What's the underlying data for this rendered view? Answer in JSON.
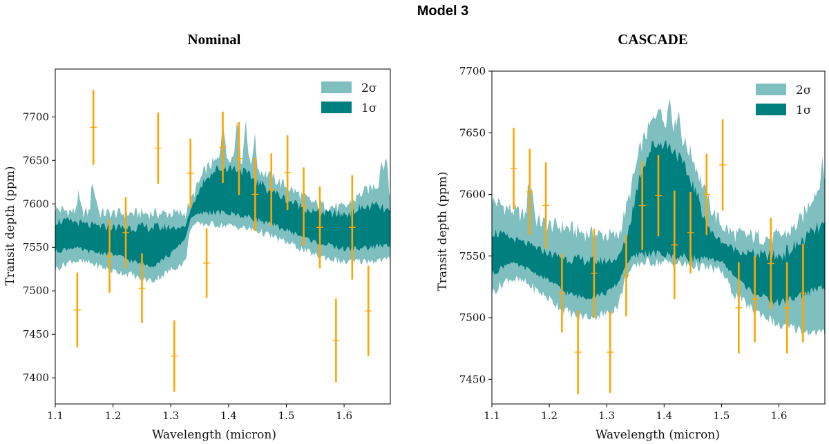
{
  "figure": {
    "title": "Model 3"
  },
  "chart_data": [
    {
      "type": "area",
      "title": "Nominal",
      "xlabel": "Wavelength (micron)",
      "ylabel": "Transit depth (ppm)",
      "xlim": [
        1.1,
        1.68
      ],
      "ylim": [
        7370,
        7755
      ],
      "xticks": [
        1.1,
        1.2,
        1.3,
        1.4,
        1.5,
        1.6
      ],
      "xtick_labels": [
        "1.1",
        "1.2",
        "1.3",
        "1.4",
        "1.5",
        "1.6"
      ],
      "yticks": [
        7400,
        7450,
        7500,
        7550,
        7600,
        7650,
        7700
      ],
      "ytick_labels": [
        "7400",
        "7450",
        "7500",
        "7550",
        "7600",
        "7650",
        "7700"
      ],
      "legend": {
        "position": "top-right",
        "entries": [
          {
            "label": "2σ",
            "color": "#7fbfbf"
          },
          {
            "label": "1σ",
            "color": "#007f7f"
          }
        ]
      },
      "bands": {
        "x": [
          1.1,
          1.13,
          1.16,
          1.2,
          1.23,
          1.25,
          1.27,
          1.3,
          1.325,
          1.335,
          1.36,
          1.38,
          1.4,
          1.42,
          1.45,
          1.5,
          1.55,
          1.6,
          1.63,
          1.655,
          1.68
        ],
        "two_sigma_lower": [
          7525,
          7535,
          7532,
          7523,
          7519,
          7513,
          7512,
          7524,
          7533,
          7575,
          7577,
          7576,
          7575,
          7573,
          7569,
          7556,
          7541,
          7533,
          7534,
          7535,
          7536
        ],
        "two_sigma_upper": [
          7594,
          7591,
          7590,
          7589,
          7589,
          7589,
          7589,
          7589,
          7589,
          7605,
          7640,
          7650,
          7655,
          7652,
          7640,
          7620,
          7600,
          7595,
          7612,
          7622,
          7610
        ],
        "one_sigma_lower": [
          7545,
          7550,
          7545,
          7542,
          7535,
          7530,
          7530,
          7542,
          7560,
          7585,
          7590,
          7590,
          7589,
          7587,
          7582,
          7570,
          7556,
          7548,
          7549,
          7551,
          7552
        ],
        "one_sigma_upper": [
          7580,
          7580,
          7575,
          7573,
          7573,
          7573,
          7573,
          7573,
          7573,
          7595,
          7630,
          7640,
          7642,
          7640,
          7625,
          7605,
          7590,
          7588,
          7595,
          7598,
          7590
        ]
      },
      "spikes": [
        {
          "x": 1.14,
          "upper": 7610
        },
        {
          "x": 1.165,
          "upper": 7630
        },
        {
          "x": 1.17,
          "upper": 7610
        },
        {
          "x": 1.39,
          "upper": 7700
        },
        {
          "x": 1.415,
          "upper": 7705
        },
        {
          "x": 1.43,
          "upper": 7700
        },
        {
          "x": 1.445,
          "upper": 7680
        },
        {
          "x": 1.665,
          "upper": 7655
        },
        {
          "x": 1.672,
          "upper": 7665
        }
      ],
      "data_points": {
        "x": [
          1.138,
          1.166,
          1.194,
          1.222,
          1.25,
          1.278,
          1.306,
          1.334,
          1.362,
          1.39,
          1.418,
          1.446,
          1.474,
          1.502,
          1.53,
          1.558,
          1.586,
          1.614,
          1.642
        ],
        "y": [
          7478,
          7688,
          7540,
          7567,
          7503,
          7664,
          7425,
          7635,
          7532,
          7665,
          7652,
          7611,
          7616,
          7636,
          7597,
          7573,
          7443,
          7573,
          7477
        ],
        "err": [
          43,
          43,
          42,
          41,
          40,
          41,
          41,
          40,
          40,
          41,
          42,
          42,
          42,
          43,
          45,
          47,
          48,
          60,
          52
        ],
        "color": "#ffa500"
      }
    },
    {
      "type": "area",
      "title": "CASCADE",
      "xlabel": "Wavelength (micron)",
      "ylabel": "Transit depth (ppm)",
      "xlim": [
        1.1,
        1.68
      ],
      "ylim": [
        7430,
        7700
      ],
      "xticks": [
        1.1,
        1.2,
        1.3,
        1.4,
        1.5,
        1.6
      ],
      "xtick_labels": [
        "1.1",
        "1.2",
        "1.3",
        "1.4",
        "1.5",
        "1.6"
      ],
      "yticks": [
        7450,
        7500,
        7550,
        7600,
        7650,
        7700
      ],
      "ytick_labels": [
        "7450",
        "7500",
        "7550",
        "7600",
        "7650",
        "7700"
      ],
      "legend": {
        "position": "top-right",
        "entries": [
          {
            "label": "2σ",
            "color": "#7fbfbf"
          },
          {
            "label": "1σ",
            "color": "#007f7f"
          }
        ]
      },
      "bands": {
        "x": [
          1.1,
          1.13,
          1.16,
          1.2,
          1.23,
          1.25,
          1.27,
          1.3,
          1.32,
          1.335,
          1.36,
          1.38,
          1.4,
          1.42,
          1.45,
          1.48,
          1.5,
          1.52,
          1.55,
          1.58,
          1.6,
          1.62,
          1.64,
          1.66,
          1.68
        ],
        "two_sigma_lower": [
          7520,
          7532,
          7528,
          7515,
          7505,
          7501,
          7501,
          7503,
          7510,
          7535,
          7545,
          7545,
          7545,
          7544,
          7542,
          7540,
          7538,
          7520,
          7508,
          7500,
          7493,
          7492,
          7490,
          7488,
          7487
        ],
        "two_sigma_upper": [
          7595,
          7588,
          7582,
          7575,
          7573,
          7570,
          7568,
          7567,
          7566,
          7590,
          7640,
          7660,
          7662,
          7655,
          7630,
          7590,
          7575,
          7568,
          7566,
          7565,
          7566,
          7570,
          7580,
          7600,
          7610
        ],
        "one_sigma_lower": [
          7535,
          7545,
          7540,
          7530,
          7520,
          7517,
          7517,
          7520,
          7528,
          7545,
          7552,
          7552,
          7551,
          7550,
          7548,
          7547,
          7546,
          7535,
          7522,
          7515,
          7512,
          7515,
          7518,
          7522,
          7525
        ],
        "one_sigma_upper": [
          7570,
          7565,
          7560,
          7552,
          7548,
          7547,
          7546,
          7546,
          7548,
          7565,
          7620,
          7640,
          7642,
          7635,
          7608,
          7570,
          7562,
          7556,
          7552,
          7550,
          7550,
          7555,
          7562,
          7570,
          7575
        ]
      },
      "spikes": [
        {
          "x": 1.165,
          "upper": 7615
        },
        {
          "x": 1.17,
          "upper": 7608
        },
        {
          "x": 1.39,
          "upper": 7675
        },
        {
          "x": 1.41,
          "upper": 7680
        },
        {
          "x": 1.425,
          "upper": 7670
        },
        {
          "x": 1.675,
          "upper": 7625
        }
      ],
      "data_points": {
        "x": [
          1.138,
          1.166,
          1.194,
          1.222,
          1.25,
          1.278,
          1.306,
          1.334,
          1.362,
          1.39,
          1.418,
          1.446,
          1.474,
          1.502,
          1.53,
          1.558,
          1.586,
          1.614,
          1.642
        ],
        "y": [
          7621,
          7602,
          7591,
          7520,
          7472,
          7536,
          7472,
          7534,
          7591,
          7599,
          7559,
          7569,
          7600,
          7624,
          7508,
          7515,
          7544,
          7508,
          7520
        ],
        "err": [
          33,
          35,
          35,
          32,
          34,
          36,
          33,
          33,
          36,
          33,
          44,
          33,
          33,
          37,
          37,
          35,
          37,
          37,
          40
        ],
        "color": "#ffa500"
      }
    }
  ]
}
